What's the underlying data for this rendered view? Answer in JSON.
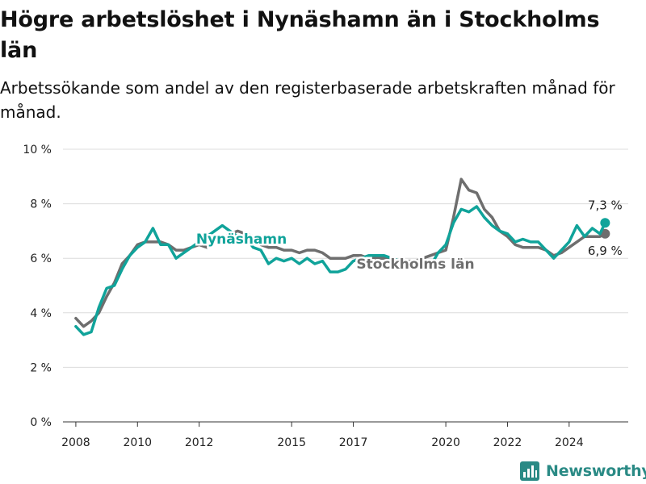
{
  "title": "Högre arbetslöshet i Nynäshamn än i Stockholms län",
  "subtitle": "Arbetssökande som andel av den registerbaserade arbetskraften månad för månad.",
  "brand": {
    "name": "Newsworthy",
    "icon": "newsworthy-logo-icon",
    "color": "#2a8a85"
  },
  "colors": {
    "nynashamn": "#10a39a",
    "stockholm": "#6e6e6e"
  },
  "chart_data": {
    "type": "line",
    "ylim": [
      0,
      10
    ],
    "y_ticks": [
      0,
      2,
      4,
      6,
      8,
      10
    ],
    "y_tick_labels": [
      "0 %",
      "2 %",
      "4 %",
      "6 %",
      "8 %",
      "10 %"
    ],
    "x_ticks": [
      2008,
      2010,
      2012,
      2015,
      2017,
      2020,
      2022,
      2024
    ],
    "x_tick_labels": [
      "2008",
      "2010",
      "2012",
      "2015",
      "2017",
      "2020",
      "2022",
      "2024"
    ],
    "x_range": [
      "2007-08",
      "2025-12"
    ],
    "grid": true,
    "series": [
      {
        "name": "Nynäshamn",
        "color": "#10a39a",
        "end_label": "7,3 %",
        "points": [
          [
            "2008-01",
            3.5
          ],
          [
            "2008-04",
            3.2
          ],
          [
            "2008-07",
            3.3
          ],
          [
            "2008-10",
            4.2
          ],
          [
            "2009-01",
            4.9
          ],
          [
            "2009-04",
            5.0
          ],
          [
            "2009-07",
            5.6
          ],
          [
            "2009-10",
            6.1
          ],
          [
            "2010-01",
            6.4
          ],
          [
            "2010-04",
            6.6
          ],
          [
            "2010-07",
            7.1
          ],
          [
            "2010-10",
            6.5
          ],
          [
            "2011-01",
            6.5
          ],
          [
            "2011-04",
            6.0
          ],
          [
            "2011-07",
            6.2
          ],
          [
            "2011-10",
            6.4
          ],
          [
            "2012-01",
            6.6
          ],
          [
            "2012-04",
            6.8
          ],
          [
            "2012-07",
            7.0
          ],
          [
            "2012-10",
            7.2
          ],
          [
            "2013-01",
            7.0
          ],
          [
            "2013-04",
            6.8
          ],
          [
            "2013-07",
            6.8
          ],
          [
            "2013-10",
            6.4
          ],
          [
            "2014-01",
            6.3
          ],
          [
            "2014-04",
            5.8
          ],
          [
            "2014-07",
            6.0
          ],
          [
            "2014-10",
            5.9
          ],
          [
            "2015-01",
            6.0
          ],
          [
            "2015-04",
            5.8
          ],
          [
            "2015-07",
            6.0
          ],
          [
            "2015-10",
            5.8
          ],
          [
            "2016-01",
            5.9
          ],
          [
            "2016-04",
            5.5
          ],
          [
            "2016-07",
            5.5
          ],
          [
            "2016-10",
            5.6
          ],
          [
            "2017-01",
            5.9
          ],
          [
            "2017-04",
            6.0
          ],
          [
            "2017-07",
            6.1
          ],
          [
            "2017-10",
            6.1
          ],
          [
            "2018-01",
            6.1
          ],
          [
            "2018-04",
            6.0
          ],
          [
            "2018-07",
            5.9
          ],
          [
            "2018-10",
            5.8
          ],
          [
            "2019-01",
            5.8
          ],
          [
            "2019-04",
            5.6
          ],
          [
            "2019-07",
            5.7
          ],
          [
            "2019-10",
            6.2
          ],
          [
            "2020-01",
            6.5
          ],
          [
            "2020-04",
            7.3
          ],
          [
            "2020-07",
            7.8
          ],
          [
            "2020-10",
            7.7
          ],
          [
            "2021-01",
            7.9
          ],
          [
            "2021-04",
            7.5
          ],
          [
            "2021-07",
            7.2
          ],
          [
            "2021-10",
            7.0
          ],
          [
            "2022-01",
            6.9
          ],
          [
            "2022-04",
            6.6
          ],
          [
            "2022-07",
            6.7
          ],
          [
            "2022-10",
            6.6
          ],
          [
            "2023-01",
            6.6
          ],
          [
            "2023-04",
            6.3
          ],
          [
            "2023-07",
            6.0
          ],
          [
            "2023-10",
            6.3
          ],
          [
            "2024-01",
            6.6
          ],
          [
            "2024-04",
            7.2
          ],
          [
            "2024-07",
            6.8
          ],
          [
            "2024-10",
            7.1
          ],
          [
            "2025-01",
            6.9
          ],
          [
            "2025-03",
            7.3
          ]
        ]
      },
      {
        "name": "Stockholms län",
        "color": "#6e6e6e",
        "end_label": "6,9 %",
        "points": [
          [
            "2008-01",
            3.8
          ],
          [
            "2008-04",
            3.5
          ],
          [
            "2008-07",
            3.7
          ],
          [
            "2008-10",
            4.0
          ],
          [
            "2009-01",
            4.6
          ],
          [
            "2009-04",
            5.1
          ],
          [
            "2009-07",
            5.8
          ],
          [
            "2009-10",
            6.1
          ],
          [
            "2010-01",
            6.5
          ],
          [
            "2010-04",
            6.6
          ],
          [
            "2010-07",
            6.6
          ],
          [
            "2010-10",
            6.6
          ],
          [
            "2011-01",
            6.5
          ],
          [
            "2011-04",
            6.3
          ],
          [
            "2011-07",
            6.3
          ],
          [
            "2011-10",
            6.4
          ],
          [
            "2012-01",
            6.5
          ],
          [
            "2012-04",
            6.4
          ],
          [
            "2012-07",
            6.6
          ],
          [
            "2012-10",
            6.7
          ],
          [
            "2013-01",
            6.9
          ],
          [
            "2013-04",
            7.0
          ],
          [
            "2013-07",
            6.9
          ],
          [
            "2013-10",
            6.8
          ],
          [
            "2014-01",
            6.5
          ],
          [
            "2014-04",
            6.4
          ],
          [
            "2014-07",
            6.4
          ],
          [
            "2014-10",
            6.3
          ],
          [
            "2015-01",
            6.3
          ],
          [
            "2015-04",
            6.2
          ],
          [
            "2015-07",
            6.3
          ],
          [
            "2015-10",
            6.3
          ],
          [
            "2016-01",
            6.2
          ],
          [
            "2016-04",
            6.0
          ],
          [
            "2016-07",
            6.0
          ],
          [
            "2016-10",
            6.0
          ],
          [
            "2017-01",
            6.1
          ],
          [
            "2017-04",
            6.1
          ],
          [
            "2017-07",
            6.0
          ],
          [
            "2017-10",
            6.0
          ],
          [
            "2018-01",
            6.0
          ],
          [
            "2018-04",
            6.0
          ],
          [
            "2018-07",
            5.9
          ],
          [
            "2018-10",
            5.9
          ],
          [
            "2019-01",
            5.9
          ],
          [
            "2019-04",
            6.0
          ],
          [
            "2019-07",
            6.1
          ],
          [
            "2019-10",
            6.2
          ],
          [
            "2020-01",
            6.3
          ],
          [
            "2020-04",
            7.5
          ],
          [
            "2020-07",
            8.9
          ],
          [
            "2020-10",
            8.5
          ],
          [
            "2021-01",
            8.4
          ],
          [
            "2021-04",
            7.8
          ],
          [
            "2021-07",
            7.5
          ],
          [
            "2021-10",
            7.0
          ],
          [
            "2022-01",
            6.8
          ],
          [
            "2022-04",
            6.5
          ],
          [
            "2022-07",
            6.4
          ],
          [
            "2022-10",
            6.4
          ],
          [
            "2023-01",
            6.4
          ],
          [
            "2023-04",
            6.3
          ],
          [
            "2023-07",
            6.1
          ],
          [
            "2023-10",
            6.2
          ],
          [
            "2024-01",
            6.4
          ],
          [
            "2024-04",
            6.6
          ],
          [
            "2024-07",
            6.8
          ],
          [
            "2024-10",
            6.8
          ],
          [
            "2025-01",
            6.8
          ],
          [
            "2025-03",
            6.9
          ]
        ]
      }
    ]
  }
}
